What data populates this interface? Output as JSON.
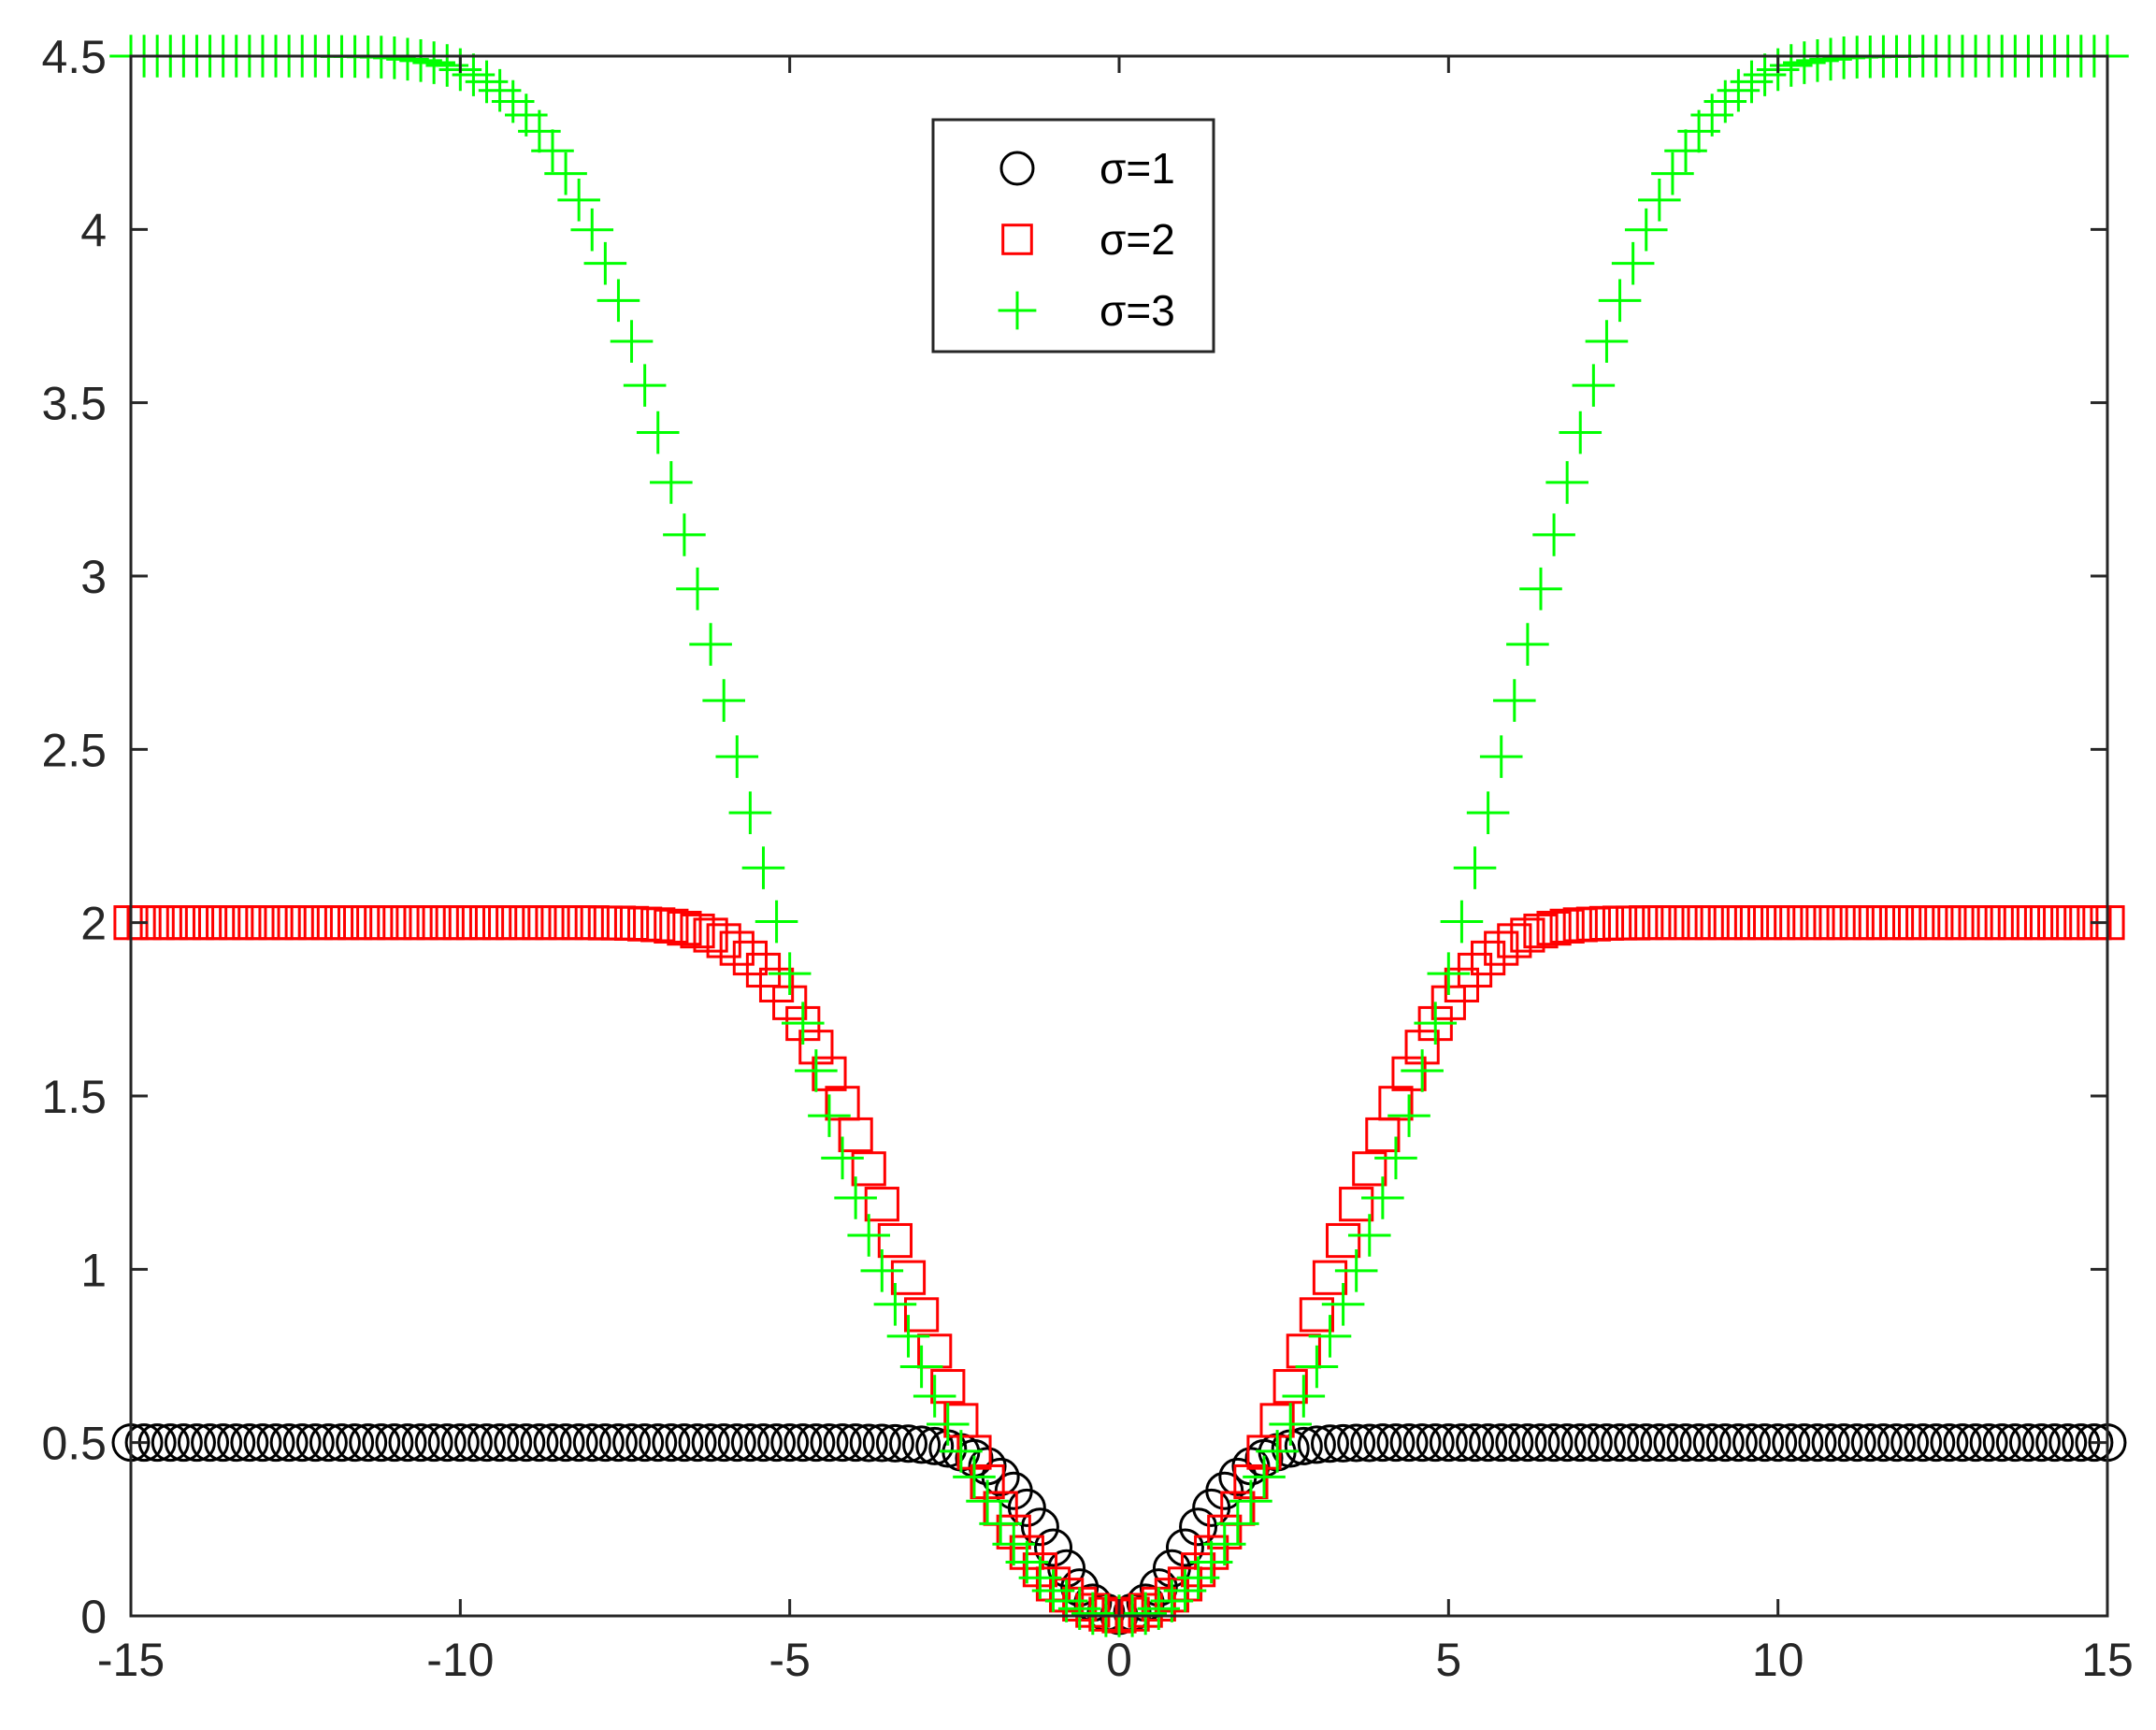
{
  "chart_data": {
    "type": "scatter",
    "title": "",
    "xlabel": "",
    "ylabel": "",
    "xlim": [
      -15,
      15
    ],
    "ylim": [
      0,
      4.5
    ],
    "x_ticks": [
      -15,
      -10,
      -5,
      0,
      5,
      10,
      15
    ],
    "x_tick_labels": [
      "-15",
      "-10",
      "-5",
      "0",
      "5",
      "10",
      "15"
    ],
    "y_ticks": [
      0,
      0.5,
      1,
      1.5,
      2,
      2.5,
      3,
      3.5,
      4,
      4.5
    ],
    "y_tick_labels": [
      "0",
      "0.5",
      "1",
      "1.5",
      "2",
      "2.5",
      "3",
      "3.5",
      "4",
      "4.5"
    ],
    "grid": false,
    "legend_position": "top-center",
    "x": [
      -15.0,
      -14.8,
      -14.6,
      -14.4,
      -14.2,
      -14.0,
      -13.8,
      -13.6,
      -13.4,
      -13.2,
      -13.0,
      -12.8,
      -12.6,
      -12.4,
      -12.2,
      -12.0,
      -11.8,
      -11.6,
      -11.4,
      -11.2,
      -11.0,
      -10.8,
      -10.6,
      -10.4,
      -10.2,
      -10.0,
      -9.8,
      -9.6,
      -9.4,
      -9.2,
      -9.0,
      -8.8,
      -8.6,
      -8.4,
      -8.2,
      -8.0,
      -7.8,
      -7.6,
      -7.4,
      -7.2,
      -7.0,
      -6.8,
      -6.6,
      -6.4,
      -6.2,
      -6.0,
      -5.8,
      -5.6,
      -5.4,
      -5.2,
      -5.0,
      -4.8,
      -4.6,
      -4.4,
      -4.2,
      -4.0,
      -3.8,
      -3.6,
      -3.4,
      -3.2,
      -3.0,
      -2.8,
      -2.6,
      -2.4,
      -2.2,
      -2.0,
      -1.8,
      -1.6,
      -1.4,
      -1.2,
      -1.0,
      -0.8,
      -0.6,
      -0.4,
      -0.2,
      0.0,
      0.2,
      0.4,
      0.6,
      0.8,
      1.0,
      1.2,
      1.4,
      1.6,
      1.8,
      2.0,
      2.2,
      2.4,
      2.6,
      2.8,
      3.0,
      3.2,
      3.4,
      3.6,
      3.8,
      4.0,
      4.2,
      4.4,
      4.6,
      4.8,
      5.0,
      5.2,
      5.4,
      5.6,
      5.8,
      6.0,
      6.2,
      6.4,
      6.6,
      6.8,
      7.0,
      7.2,
      7.4,
      7.6,
      7.8,
      8.0,
      8.2,
      8.4,
      8.6,
      8.8,
      9.0,
      9.2,
      9.4,
      9.6,
      9.8,
      10.0,
      10.2,
      10.4,
      10.6,
      10.8,
      11.0,
      11.2,
      11.4,
      11.6,
      11.8,
      12.0,
      12.2,
      12.4,
      12.6,
      12.8,
      13.0,
      13.2,
      13.4,
      13.6,
      13.8,
      14.0,
      14.2,
      14.4,
      14.6,
      14.8,
      15.0
    ],
    "series": [
      {
        "name": "σ=1",
        "marker": "circle",
        "color": "#000000",
        "values": [
          0.5,
          0.5,
          0.5,
          0.5,
          0.5,
          0.5,
          0.5,
          0.5,
          0.5,
          0.5,
          0.5,
          0.5,
          0.5,
          0.5,
          0.5,
          0.5,
          0.5,
          0.5,
          0.5,
          0.5,
          0.5,
          0.5,
          0.5,
          0.5,
          0.5,
          0.5,
          0.5,
          0.5,
          0.5,
          0.5,
          0.5,
          0.5,
          0.5,
          0.5,
          0.5,
          0.5,
          0.5,
          0.5,
          0.5,
          0.5,
          0.5,
          0.5,
          0.5,
          0.5,
          0.5,
          0.5,
          0.5,
          0.5,
          0.5,
          0.5,
          0.5,
          0.5,
          0.5,
          0.5,
          0.5,
          0.5,
          0.499,
          0.499,
          0.498,
          0.497,
          0.494,
          0.49,
          0.483,
          0.472,
          0.455,
          0.432,
          0.401,
          0.361,
          0.312,
          0.257,
          0.197,
          0.137,
          0.082,
          0.038,
          0.01,
          0.0,
          0.01,
          0.038,
          0.082,
          0.137,
          0.197,
          0.257,
          0.312,
          0.361,
          0.401,
          0.432,
          0.455,
          0.472,
          0.483,
          0.49,
          0.494,
          0.497,
          0.498,
          0.499,
          0.499,
          0.5,
          0.5,
          0.5,
          0.5,
          0.5,
          0.5,
          0.5,
          0.5,
          0.5,
          0.5,
          0.5,
          0.5,
          0.5,
          0.5,
          0.5,
          0.5,
          0.5,
          0.5,
          0.5,
          0.5,
          0.5,
          0.5,
          0.5,
          0.5,
          0.5,
          0.5,
          0.5,
          0.5,
          0.5,
          0.5,
          0.5,
          0.5,
          0.5,
          0.5,
          0.5,
          0.5,
          0.5,
          0.5,
          0.5,
          0.5,
          0.5,
          0.5,
          0.5,
          0.5,
          0.5,
          0.5,
          0.5,
          0.5,
          0.5,
          0.5,
          0.5,
          0.5,
          0.5,
          0.5,
          0.5,
          0.5
        ]
      },
      {
        "name": "σ=2",
        "marker": "square",
        "color": "#ff0000",
        "values": [
          2.0,
          2.0,
          2.0,
          2.0,
          2.0,
          2.0,
          2.0,
          2.0,
          2.0,
          2.0,
          2.0,
          2.0,
          2.0,
          2.0,
          2.0,
          2.0,
          2.0,
          2.0,
          2.0,
          2.0,
          2.0,
          2.0,
          2.0,
          2.0,
          2.0,
          2.0,
          2.0,
          2.0,
          2.0,
          2.0,
          2.0,
          2.0,
          2.0,
          2.0,
          2.0,
          2.0,
          1.999,
          1.999,
          1.998,
          1.996,
          1.994,
          1.99,
          1.984,
          1.976,
          1.964,
          1.948,
          1.926,
          1.898,
          1.863,
          1.82,
          1.769,
          1.709,
          1.641,
          1.564,
          1.479,
          1.388,
          1.29,
          1.188,
          1.083,
          0.976,
          0.869,
          0.764,
          0.662,
          0.564,
          0.472,
          0.387,
          0.31,
          0.242,
          0.183,
          0.133,
          0.092,
          0.06,
          0.034,
          0.016,
          0.005,
          0.0,
          0.005,
          0.016,
          0.034,
          0.06,
          0.092,
          0.133,
          0.183,
          0.242,
          0.31,
          0.387,
          0.472,
          0.564,
          0.662,
          0.764,
          0.869,
          0.976,
          1.083,
          1.188,
          1.29,
          1.388,
          1.479,
          1.564,
          1.641,
          1.709,
          1.769,
          1.82,
          1.863,
          1.898,
          1.926,
          1.948,
          1.964,
          1.976,
          1.984,
          1.99,
          1.994,
          1.996,
          1.998,
          1.999,
          1.999,
          2.0,
          2.0,
          2.0,
          2.0,
          2.0,
          2.0,
          2.0,
          2.0,
          2.0,
          2.0,
          2.0,
          2.0,
          2.0,
          2.0,
          2.0,
          2.0,
          2.0,
          2.0,
          2.0,
          2.0,
          2.0,
          2.0,
          2.0,
          2.0,
          2.0,
          2.0,
          2.0,
          2.0,
          2.0,
          2.0,
          2.0,
          2.0,
          2.0,
          2.0,
          2.0,
          2.0
        ]
      },
      {
        "name": "σ=3",
        "marker": "plus",
        "color": "#00ff00",
        "values": [
          4.5,
          4.5,
          4.5,
          4.5,
          4.5,
          4.5,
          4.5,
          4.5,
          4.5,
          4.5,
          4.5,
          4.5,
          4.5,
          4.5,
          4.5,
          4.5,
          4.499,
          4.499,
          4.498,
          4.497,
          4.495,
          4.491,
          4.487,
          4.481,
          4.473,
          4.461,
          4.446,
          4.426,
          4.401,
          4.369,
          4.33,
          4.283,
          4.227,
          4.161,
          4.085,
          3.999,
          3.902,
          3.795,
          3.677,
          3.55,
          3.414,
          3.27,
          3.119,
          2.963,
          2.803,
          2.641,
          2.479,
          2.317,
          2.158,
          2.003,
          1.853,
          1.71,
          1.573,
          1.443,
          1.321,
          1.206,
          1.098,
          0.996,
          0.899,
          0.807,
          0.719,
          0.634,
          0.553,
          0.475,
          0.401,
          0.331,
          0.266,
          0.207,
          0.155,
          0.11,
          0.073,
          0.043,
          0.021,
          0.007,
          0.0005,
          0.0,
          0.0005,
          0.007,
          0.021,
          0.043,
          0.073,
          0.11,
          0.155,
          0.207,
          0.266,
          0.331,
          0.401,
          0.475,
          0.553,
          0.634,
          0.719,
          0.807,
          0.899,
          0.996,
          1.098,
          1.206,
          1.321,
          1.443,
          1.573,
          1.71,
          1.853,
          2.003,
          2.158,
          2.317,
          2.479,
          2.641,
          2.803,
          2.963,
          3.119,
          3.27,
          3.414,
          3.55,
          3.677,
          3.795,
          3.902,
          3.999,
          4.085,
          4.161,
          4.227,
          4.283,
          4.33,
          4.369,
          4.401,
          4.426,
          4.446,
          4.461,
          4.473,
          4.481,
          4.487,
          4.491,
          4.495,
          4.497,
          4.498,
          4.499,
          4.499,
          4.5,
          4.5,
          4.5,
          4.5,
          4.5,
          4.5,
          4.5,
          4.5,
          4.5,
          4.5,
          4.5,
          4.5,
          4.5,
          4.5,
          4.5,
          4.5
        ]
      }
    ]
  }
}
